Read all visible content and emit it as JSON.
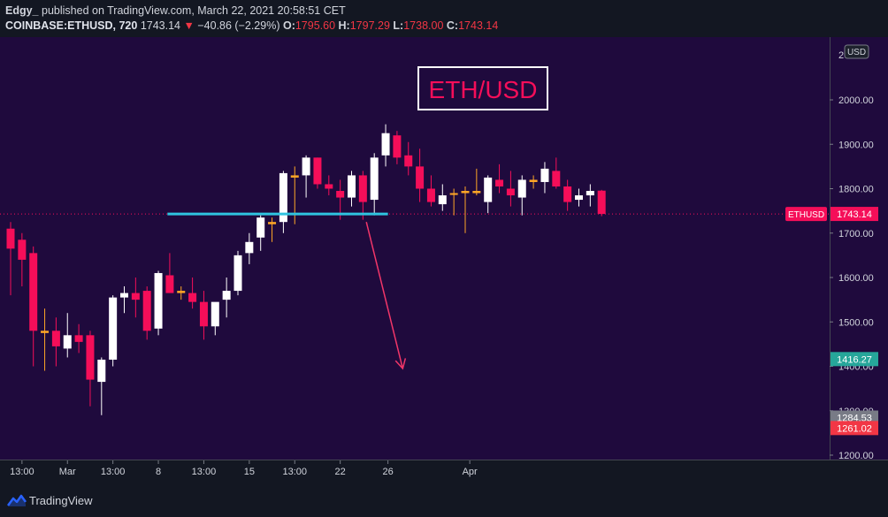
{
  "header": {
    "author": "Edgy_",
    "published": "published on TradingView.com, March 22, 2021 20:58:51 CET",
    "symbol": "COINBASE:ETHUSD, 720",
    "last": "1743.14",
    "arrow": "▼",
    "change": "−40.86 (−2.29%)",
    "o_label": "O:",
    "o_value": "1795.60",
    "h_label": "H:",
    "h_value": "1797.29",
    "l_label": "L:",
    "l_value": "1738.00",
    "c_label": "C:",
    "c_value": "1743.14"
  },
  "footer": {
    "brand": "TradingView"
  },
  "chart_data": {
    "type": "candlestick",
    "title": "ETH/USD",
    "currency": "USD",
    "colors": {
      "background": "#1f0a3d",
      "up": "#ffffff",
      "down": "#f50e59",
      "doji": "#ffa726",
      "support_line": "#2fc4e0",
      "arrow": "#f23669",
      "last_price_label": "#f50e59",
      "target_label": "#26a69a",
      "gray_label": "#787b86",
      "title_box": "#ffffff",
      "title_text": "#f50e59"
    },
    "y_axis": {
      "min": 1180,
      "max": 2100,
      "ticks": [
        1200,
        1300,
        1400,
        1500,
        1600,
        1700,
        1800,
        1900,
        2000
      ],
      "tick_labels": [
        "1200.00",
        "1300.00",
        "1400.00",
        "1500.00",
        "1600.00",
        "1700.00",
        "1800.00",
        "1900.00",
        "2000.00"
      ],
      "top_partial_label": "2"
    },
    "x_axis": {
      "labels": [
        "13:00",
        "Mar",
        "13:00",
        "8",
        "13:00",
        "15",
        "13:00",
        "22",
        "26",
        "Apr"
      ],
      "label_index": [
        1,
        5,
        9,
        13,
        17,
        21,
        25,
        29,
        33.2,
        40.4
      ]
    },
    "candles": [
      {
        "o": 1710,
        "h": 1725,
        "l": 1560,
        "c": 1665
      },
      {
        "o": 1685,
        "h": 1700,
        "l": 1580,
        "c": 1640
      },
      {
        "o": 1655,
        "h": 1670,
        "l": 1400,
        "c": 1480
      },
      {
        "o": 1480,
        "h": 1530,
        "l": 1390,
        "c": 1475
      },
      {
        "o": 1480,
        "h": 1510,
        "l": 1400,
        "c": 1445
      },
      {
        "o": 1440,
        "h": 1520,
        "l": 1420,
        "c": 1470
      },
      {
        "o": 1470,
        "h": 1495,
        "l": 1430,
        "c": 1455
      },
      {
        "o": 1470,
        "h": 1480,
        "l": 1310,
        "c": 1370
      },
      {
        "o": 1365,
        "h": 1420,
        "l": 1290,
        "c": 1415
      },
      {
        "o": 1415,
        "h": 1560,
        "l": 1400,
        "c": 1555
      },
      {
        "o": 1555,
        "h": 1580,
        "l": 1520,
        "c": 1565
      },
      {
        "o": 1565,
        "h": 1600,
        "l": 1510,
        "c": 1550
      },
      {
        "o": 1570,
        "h": 1580,
        "l": 1460,
        "c": 1480
      },
      {
        "o": 1485,
        "h": 1615,
        "l": 1470,
        "c": 1610
      },
      {
        "o": 1605,
        "h": 1655,
        "l": 1570,
        "c": 1565
      },
      {
        "o": 1570,
        "h": 1580,
        "l": 1550,
        "c": 1565
      },
      {
        "o": 1565,
        "h": 1600,
        "l": 1530,
        "c": 1545
      },
      {
        "o": 1545,
        "h": 1570,
        "l": 1460,
        "c": 1490
      },
      {
        "o": 1490,
        "h": 1540,
        "l": 1470,
        "c": 1545
      },
      {
        "o": 1550,
        "h": 1600,
        "l": 1510,
        "c": 1570
      },
      {
        "o": 1570,
        "h": 1660,
        "l": 1560,
        "c": 1650
      },
      {
        "o": 1655,
        "h": 1700,
        "l": 1630,
        "c": 1680
      },
      {
        "o": 1690,
        "h": 1740,
        "l": 1660,
        "c": 1735
      },
      {
        "o": 1725,
        "h": 1735,
        "l": 1680,
        "c": 1720
      },
      {
        "o": 1725,
        "h": 1840,
        "l": 1700,
        "c": 1835
      },
      {
        "o": 1830,
        "h": 1850,
        "l": 1720,
        "c": 1825
      },
      {
        "o": 1830,
        "h": 1875,
        "l": 1780,
        "c": 1870
      },
      {
        "o": 1870,
        "h": 1870,
        "l": 1800,
        "c": 1810
      },
      {
        "o": 1810,
        "h": 1830,
        "l": 1785,
        "c": 1800
      },
      {
        "o": 1795,
        "h": 1820,
        "l": 1730,
        "c": 1780
      },
      {
        "o": 1780,
        "h": 1840,
        "l": 1760,
        "c": 1830
      },
      {
        "o": 1830,
        "h": 1840,
        "l": 1730,
        "c": 1770
      },
      {
        "o": 1775,
        "h": 1880,
        "l": 1740,
        "c": 1870
      },
      {
        "o": 1875,
        "h": 1945,
        "l": 1850,
        "c": 1925
      },
      {
        "o": 1920,
        "h": 1930,
        "l": 1855,
        "c": 1870
      },
      {
        "o": 1875,
        "h": 1905,
        "l": 1830,
        "c": 1850
      },
      {
        "o": 1850,
        "h": 1890,
        "l": 1770,
        "c": 1800
      },
      {
        "o": 1800,
        "h": 1830,
        "l": 1760,
        "c": 1770
      },
      {
        "o": 1765,
        "h": 1810,
        "l": 1750,
        "c": 1785
      },
      {
        "o": 1790,
        "h": 1800,
        "l": 1740,
        "c": 1790
      },
      {
        "o": 1790,
        "h": 1805,
        "l": 1700,
        "c": 1795
      },
      {
        "o": 1795,
        "h": 1845,
        "l": 1785,
        "c": 1790
      },
      {
        "o": 1770,
        "h": 1830,
        "l": 1745,
        "c": 1825
      },
      {
        "o": 1820,
        "h": 1855,
        "l": 1790,
        "c": 1805
      },
      {
        "o": 1800,
        "h": 1840,
        "l": 1760,
        "c": 1785
      },
      {
        "o": 1780,
        "h": 1830,
        "l": 1740,
        "c": 1820
      },
      {
        "o": 1815,
        "h": 1830,
        "l": 1800,
        "c": 1820
      },
      {
        "o": 1815,
        "h": 1860,
        "l": 1790,
        "c": 1845
      },
      {
        "o": 1840,
        "h": 1870,
        "l": 1800,
        "c": 1805
      },
      {
        "o": 1805,
        "h": 1820,
        "l": 1750,
        "c": 1770
      },
      {
        "o": 1775,
        "h": 1800,
        "l": 1760,
        "c": 1785
      },
      {
        "o": 1785,
        "h": 1810,
        "l": 1760,
        "c": 1795
      },
      {
        "o": 1795.6,
        "h": 1797.29,
        "l": 1738.0,
        "c": 1743.14
      }
    ],
    "support_line": {
      "price": 1743,
      "from_index": 13.8,
      "to_index": 33.2
    },
    "arrow": {
      "from_index": 31.3,
      "from_price": 1725,
      "to_index": 34.5,
      "to_price": 1395
    },
    "price_labels": [
      {
        "value": "1743.14",
        "price": 1743.14,
        "color": "#f50e59",
        "tag": "ETHUSD",
        "dotted": true
      },
      {
        "value": "1416.27",
        "price": 1416.27,
        "color": "#26a69a"
      },
      {
        "value": "1284.53",
        "price": 1284.53,
        "color": "#787b86"
      },
      {
        "value": "1261.02",
        "price": 1261.02,
        "color": "#f23645"
      }
    ]
  }
}
